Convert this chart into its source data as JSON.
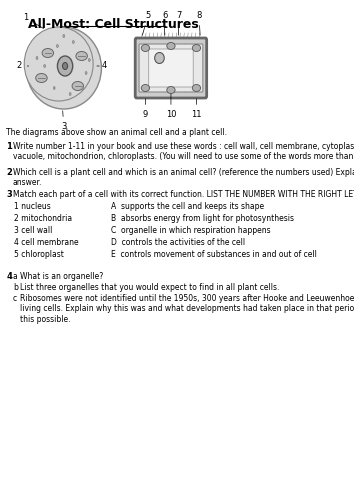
{
  "title": "All-Most: Cell Structures",
  "bg_color": "#ffffff",
  "text_color": "#000000",
  "caption": "The diagrams above show an animal cell and a plant cell.",
  "questions": [
    {
      "num": "1",
      "text": "Write number 1-11 in your book and use these words : cell wall, cell membrane, cytoplasm, nucleus,\nvacuole, mitochondrion, chloroplasts. (You will need to use some of the words more than once.)"
    },
    {
      "num": "2",
      "text": "Which cell is a plant cell and which is an animal cell? (reference the numbers used) Explain your\nanswer."
    },
    {
      "num": "3",
      "text": "Match each part of a cell with its correct function. LIST THE NUMBER WITH THE RIGHT LETTER."
    }
  ],
  "match_left": [
    "1 nucleus",
    "2 mitochondria",
    "3 cell wall",
    "4 cell membrane",
    "5 chloroplast"
  ],
  "match_right": [
    "A  supports the cell and keeps its shape",
    "B  absorbs energy from light for photosynthesis",
    "C  organelle in which respiration happens",
    "D  controls the activities of the cell",
    "E  controls movement of substances in and out of cell"
  ],
  "q4_parts": [
    {
      "letter": "a",
      "text": "What is an organelle?"
    },
    {
      "letter": "b",
      "text": "List three organelles that you would expect to find in all plant cells."
    },
    {
      "letter": "c",
      "text": "Ribosomes were not identified until the 1950s, 300 years after Hooke and Leeuwenhoek identified\nliving cells. Explain why this was and what developments had taken place in that period to make\nthis possible."
    }
  ]
}
